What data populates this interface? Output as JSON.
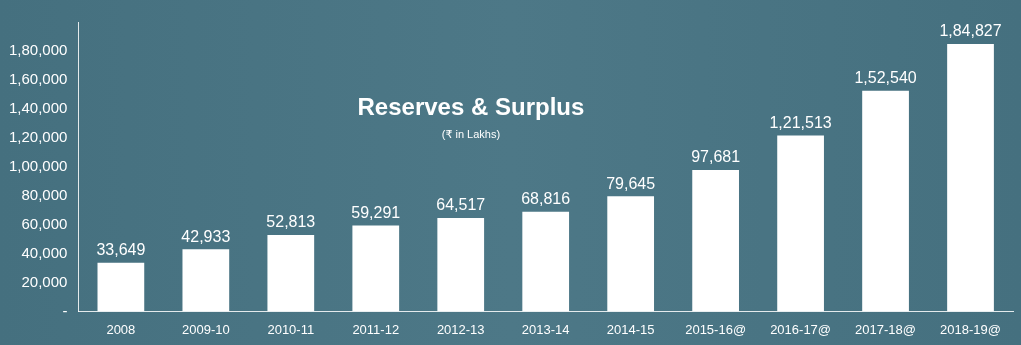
{
  "chart_data": {
    "type": "bar",
    "title": "Reserves & Surplus",
    "subtitle": "(₹ in Lakhs)",
    "categories": [
      "2008",
      "2009-10",
      "2010-11",
      "2011-12",
      "2012-13",
      "2013-14",
      "2014-15",
      "2015-16@",
      "2016-17@",
      "2017-18@",
      "2018-19@"
    ],
    "values": [
      33649,
      42933,
      52813,
      59291,
      64517,
      68816,
      79645,
      97681,
      121513,
      152540,
      184827
    ],
    "value_labels": [
      "33,649",
      "42,933",
      "52,813",
      "59,291",
      "64,517",
      "68,816",
      "79,645",
      "97,681",
      "1,21,513",
      "1,52,540",
      "1,84,827"
    ],
    "color": "#ffffff",
    "ylim": [
      0,
      200000
    ],
    "yticks": [
      {
        "value": 0,
        "label": "-"
      },
      {
        "value": 20000,
        "label": "20,000"
      },
      {
        "value": 40000,
        "label": "40,000"
      },
      {
        "value": 60000,
        "label": "60,000"
      },
      {
        "value": 80000,
        "label": "80,000"
      },
      {
        "value": 100000,
        "label": "1,00,000"
      },
      {
        "value": 120000,
        "label": "1,20,000"
      },
      {
        "value": 140000,
        "label": "1,40,000"
      },
      {
        "value": 160000,
        "label": "1,60,000"
      },
      {
        "value": 180000,
        "label": "1,80,000"
      }
    ],
    "grid": false,
    "data_labels": true
  }
}
